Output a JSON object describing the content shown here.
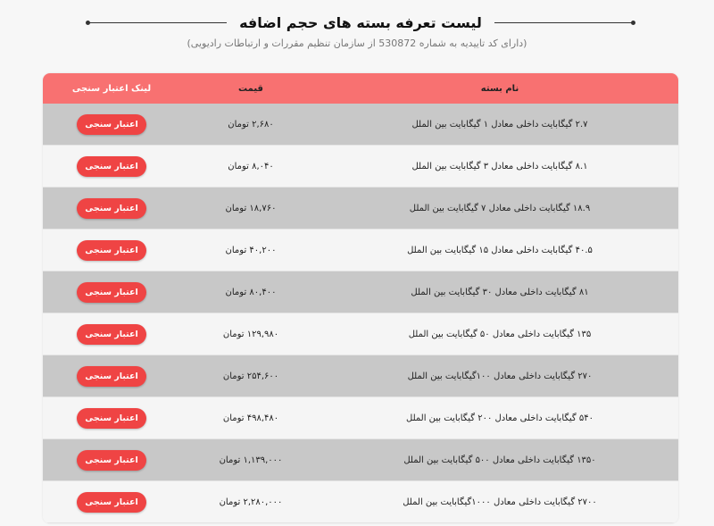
{
  "title": "لیست تعرفه بسته های حجم اضافه",
  "subtitle": "(دارای کد تاییدیه به شماره 530872 از سازمان تنظیم مقررات و ارتباطات رادیویی)",
  "table": {
    "headers": {
      "name": "نام بسته",
      "price": "قیمت",
      "link": "لینک اعتبار سنجی"
    },
    "rows": [
      {
        "name": "۲.۷ گیگابایت داخلی معادل ۱ گیگابایت بین الملل",
        "price": "۲,۶۸۰ تومان",
        "button": "اعتبار سنجی"
      },
      {
        "name": "۸.۱ گیگابایت داخلی معادل ۳ گیگابایت بین الملل",
        "price": "۸,۰۴۰ تومان",
        "button": "اعتبار سنجی"
      },
      {
        "name": "۱۸.۹ گیگابایت داخلی معادل ۷ گیگابایت بین الملل",
        "price": "۱۸,۷۶۰ تومان",
        "button": "اعتبار سنجی"
      },
      {
        "name": "۴۰.۵ گیگابایت داخلی معادل ۱۵ گیگابایت بین الملل",
        "price": "۴۰,۲۰۰ تومان",
        "button": "اعتبار سنجی"
      },
      {
        "name": "۸۱ گیگابایت داخلی معادل ۳۰ گیگابایت بین الملل",
        "price": "۸۰,۴۰۰ تومان",
        "button": "اعتبار سنجی"
      },
      {
        "name": "۱۳۵ گیگابایت داخلی معادل ۵۰ گیگابایت بین الملل",
        "price": "۱۲۹,۹۸۰ تومان",
        "button": "اعتبار سنجی"
      },
      {
        "name": "۲۷۰ گیگابایت داخلی معادل ۱۰۰گیگابایت بین الملل",
        "price": "۲۵۴,۶۰۰ تومان",
        "button": "اعتبار سنجی"
      },
      {
        "name": "۵۴۰ گیگابایت داخلی معادل ۲۰۰ گیگابایت بین الملل",
        "price": "۴۹۸,۴۸۰ تومان",
        "button": "اعتبار سنجی"
      },
      {
        "name": "۱۳۵۰ گیگابایت داخلی معادل ۵۰۰ گیگابایت بین الملل",
        "price": "۱,۱۳۹,۰۰۰ تومان",
        "button": "اعتبار سنجی"
      },
      {
        "name": "۲۷۰۰ گیگابایت داخلی معادل ۱۰۰۰گیگابایت بین الملل",
        "price": "۲,۲۸۰,۰۰۰ تومان",
        "button": "اعتبار سنجی"
      }
    ]
  },
  "colors": {
    "header": "#f87171",
    "button": "#ef4444",
    "row_gray": "#c8c8c8",
    "row_light": "#f5f5f5"
  }
}
